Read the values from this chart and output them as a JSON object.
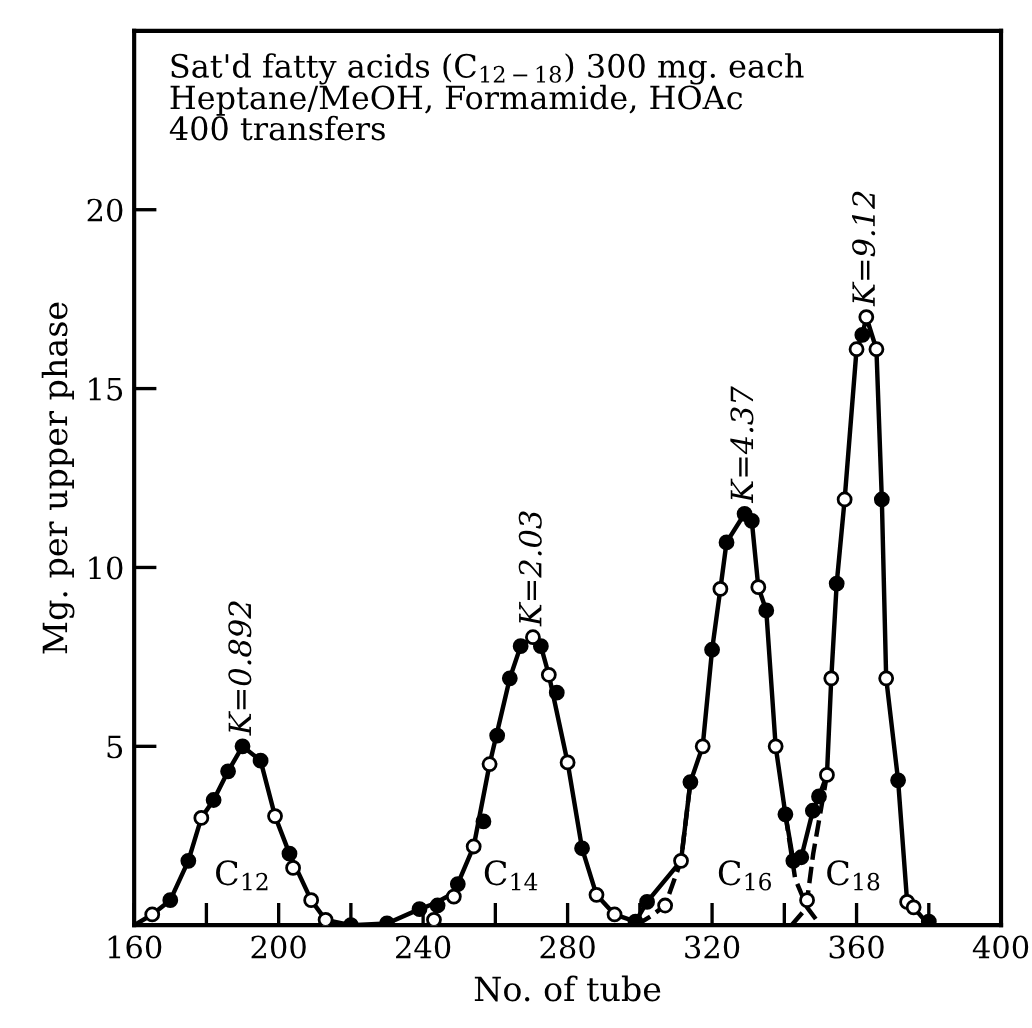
{
  "chart_data": {
    "type": "line",
    "title": "Sat'd fatty acids (C$_{12−18}$) 300 mg. each\nHeptane/MeOH, Formamide, HOAc\n400 transfers",
    "xlabel": "No. of tube",
    "ylabel": "Mg. per upper phase",
    "xlim": [
      160,
      400
    ],
    "ylim": [
      0,
      25
    ],
    "xticks": [
      160,
      {
        "value": 180,
        "label": null
      },
      200,
      {
        "value": 220,
        "label": null
      },
      240,
      {
        "value": 260,
        "label": null
      },
      280,
      {
        "value": 300,
        "label": null
      },
      320,
      {
        "value": 340,
        "label": null
      },
      360,
      {
        "value": 380,
        "label": null
      },
      400
    ],
    "yticks": [
      5,
      10,
      15,
      20
    ],
    "grid": false,
    "series": [
      {
        "line_style": "solid",
        "marker": "none",
        "color": "#000000",
        "x": [
          160,
          165,
          170,
          175,
          178.6,
          182,
          186,
          190,
          195,
          199,
          203,
          209,
          213,
          220,
          230,
          239,
          243,
          248.5,
          254,
          258.4,
          264,
          267,
          270.4,
          272.6,
          274.8,
          280,
          284,
          288,
          293,
          298.8,
          302,
          311.4,
          314,
          317.4,
          320,
          322.3,
          324,
          329,
          331,
          332.8,
          335,
          337.6,
          340.3,
          342.5,
          344.7,
          347.9,
          349.6,
          351.8,
          353,
          354.5,
          356.7,
          360,
          361.6,
          362.7,
          365.5,
          367,
          368.2,
          371.5,
          374,
          375.8,
          380
        ],
        "values": [
          0,
          0.3,
          0.7,
          1.8,
          3.0,
          3.5,
          4.3,
          5.0,
          4.6,
          3.05,
          2.0,
          0.7,
          0.15,
          0,
          0.05,
          0.45,
          0.6,
          0.9,
          2.2,
          4.5,
          6.9,
          7.8,
          8.05,
          7.8,
          7.0,
          4.55,
          2.15,
          0.85,
          0.3,
          0.1,
          0.65,
          1.8,
          4.0,
          5.0,
          7.7,
          9.4,
          10.7,
          11.5,
          11.3,
          9.45,
          8.8,
          5.0,
          3.1,
          1.8,
          1.9,
          3.2,
          3.6,
          4.2,
          6.9,
          9.55,
          11.9,
          16.1,
          16.5,
          17.0,
          16.1,
          11.9,
          6.9,
          4.05,
          0.65,
          0.5,
          0
        ]
      },
      {
        "line_style": "dashed",
        "marker": "none",
        "color": "#000000",
        "x": [
          299,
          303,
          307,
          311.4,
          314
        ],
        "values": [
          0,
          0.25,
          0.55,
          1.8,
          4.0
        ]
      },
      {
        "line_style": "dashed",
        "marker": "none",
        "color": "#000000",
        "x": [
          340.3,
          343,
          346.3,
          350
        ],
        "values": [
          3.1,
          1.3,
          0.5,
          0
        ]
      },
      {
        "line_style": "dashed",
        "marker": "none",
        "color": "#000000",
        "x": [
          342,
          345,
          346.3,
          348,
          351.8
        ],
        "values": [
          0,
          0.35,
          0.7,
          2.0,
          4.2
        ]
      },
      {
        "type": "scatter",
        "marker": "circle",
        "color": "#000000",
        "x": [
          170,
          175,
          182,
          186,
          190,
          195,
          203,
          220,
          230,
          239,
          244,
          249.6,
          256.7,
          260.5,
          264,
          267,
          272.6,
          277,
          284,
          298.8,
          302,
          314,
          320,
          324,
          329,
          331,
          335,
          340.3,
          342.5,
          344.7,
          347.9,
          349.6,
          354.5,
          361.6,
          367,
          371.5,
          380
        ],
        "values": [
          0.7,
          1.8,
          3.5,
          4.3,
          5.0,
          4.6,
          2.0,
          0,
          0.05,
          0.45,
          0.55,
          1.15,
          2.9,
          5.3,
          6.9,
          7.8,
          7.8,
          6.5,
          2.15,
          0.1,
          0.65,
          4.0,
          7.7,
          10.7,
          11.5,
          11.3,
          8.8,
          3.1,
          1.8,
          1.9,
          3.2,
          3.6,
          9.55,
          16.5,
          11.9,
          4.05,
          0.1
        ]
      },
      {
        "type": "scatter",
        "marker": "circle",
        "color": "#ffffff",
        "x": [
          165,
          178.6,
          199,
          204,
          209,
          213,
          243,
          248.5,
          254,
          258.4,
          270.4,
          274.8,
          280,
          288,
          293,
          307,
          311.4,
          317.4,
          322.3,
          332.8,
          337.6,
          346.3,
          351.8,
          353,
          356.7,
          360,
          362.7,
          365.5,
          368.2,
          374,
          375.8
        ],
        "values": [
          0.3,
          3.0,
          3.05,
          1.6,
          0.7,
          0.15,
          0.15,
          0.8,
          2.2,
          4.5,
          8.05,
          7.0,
          4.55,
          0.85,
          0.3,
          0.55,
          1.8,
          5.0,
          9.4,
          9.45,
          5.0,
          0.7,
          4.2,
          6.9,
          11.9,
          16.1,
          17.0,
          16.1,
          6.9,
          0.65,
          0.5
        ]
      }
    ],
    "annotations": [
      {
        "text": "K=0.892",
        "x": 190,
        "y": 5.0
      },
      {
        "text": "K=2.03",
        "x": 270.4,
        "y": 8.05
      },
      {
        "text": "K=4.37",
        "x": 329,
        "y": 11.5
      },
      {
        "text": "K=9.12",
        "x": 362.7,
        "y": 17.0
      },
      "C$_{12}$",
      "C$_{14}$",
      "C$_{16}$",
      "C$_{18}$"
    ]
  }
}
